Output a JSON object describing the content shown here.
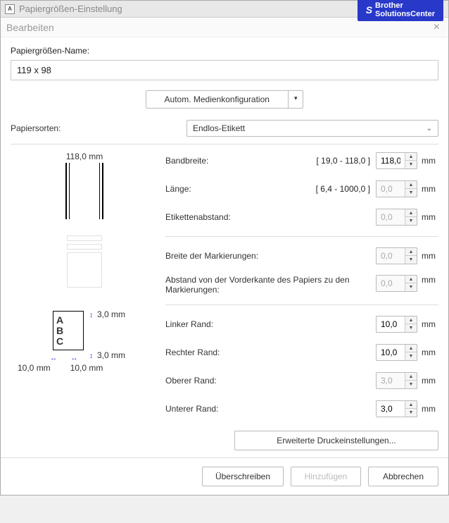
{
  "outerTitle": "Papiergrößen-Einstellung",
  "brother": {
    "line1": "Brother",
    "line2": "SolutionsCenter"
  },
  "innerTitle": "Bearbeiten",
  "nameLabel": "Papiergrößen-Name:",
  "nameValue": "119 x 98",
  "medienBtn": "Autom. Medienkonfiguration",
  "sortenLabel": "Papiersorten:",
  "sortenValue": "Endlos-Etikett",
  "preview": {
    "topWidth": "118,0 mm",
    "marginTop": "3,0 mm",
    "marginBot": "3,0 mm",
    "marginL": "10,0 mm",
    "marginR": "10,0 mm",
    "abcA": "A",
    "abcB": "B",
    "abcC": "C"
  },
  "params": {
    "bandbreite": {
      "label": "Bandbreite:",
      "range": "[ 19,0 - 118,0 ]",
      "value": "118,0",
      "enabled": true
    },
    "laenge": {
      "label": "Länge:",
      "range": "[ 6,4 - 1000,0 ]",
      "value": "0,0",
      "enabled": false
    },
    "etikett": {
      "label": "Etikettenabstand:",
      "range": "",
      "value": "0,0",
      "enabled": false
    },
    "markbreite": {
      "label": "Breite der Markierungen:",
      "range": "",
      "value": "0,0",
      "enabled": false
    },
    "markabstand": {
      "label": "Abstand von der Vorderkante des Papiers zu den Markierungen:",
      "range": "",
      "value": "0,0",
      "enabled": false
    },
    "linker": {
      "label": "Linker Rand:",
      "range": "",
      "value": "10,0",
      "enabled": true
    },
    "rechter": {
      "label": "Rechter Rand:",
      "range": "",
      "value": "10,0",
      "enabled": true
    },
    "oberer": {
      "label": "Oberer Rand:",
      "range": "",
      "value": "3,0",
      "enabled": false
    },
    "unterer": {
      "label": "Unterer Rand:",
      "range": "",
      "value": "3,0",
      "enabled": true
    }
  },
  "unit": "mm",
  "advBtn": "Erweiterte Druckeinstellungen...",
  "btnOverwrite": "Überschreiben",
  "btnAdd": "Hinzufügen",
  "btnCancel": "Abbrechen"
}
